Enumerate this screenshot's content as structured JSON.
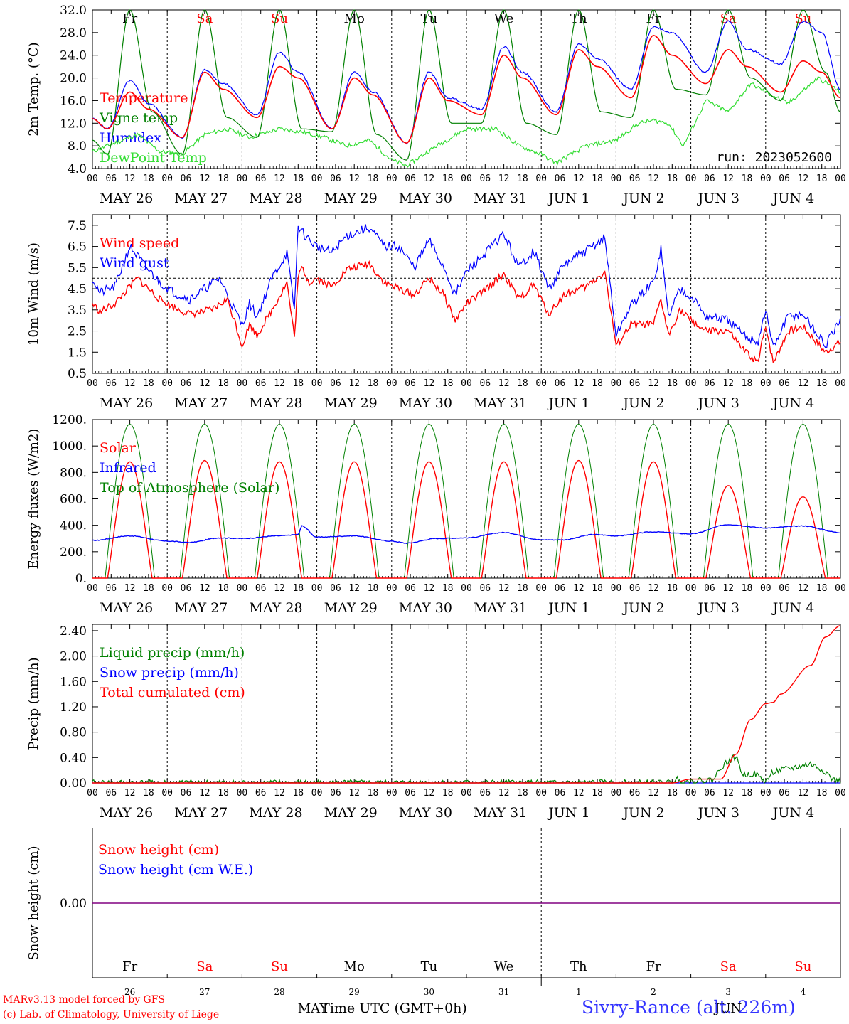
{
  "x_axis": {
    "hour_labels": [
      "00",
      "06",
      "12",
      "18"
    ],
    "date_labels": [
      "MAY 26",
      "MAY 27",
      "MAY 28",
      "MAY 29",
      "MAY 30",
      "MAY 31",
      "JUN  1",
      "JUN  2",
      "JUN  3",
      "JUN  4"
    ],
    "weekdays": [
      "Fr",
      "Sa",
      "Su",
      "Mo",
      "Tu",
      "We",
      "Th",
      "Fr",
      "Sa",
      "Su"
    ],
    "weekend_flags": [
      false,
      true,
      true,
      false,
      false,
      false,
      false,
      false,
      true,
      true
    ],
    "day_numbers": [
      "26",
      "27",
      "28",
      "29",
      "30",
      "31",
      "1",
      "2",
      "3",
      "4"
    ],
    "month_labels": [
      "MAY",
      "JUN"
    ],
    "title": "Time UTC (GMT+0h)"
  },
  "footer": {
    "model_line": "MARv3.13 model forced by GFS",
    "lab_line": "(c) Lab. of Climatology, University of Liege",
    "station": "Sivry-Rance (alt. 226m)"
  },
  "colors": {
    "red": "#ff0000",
    "dark_green": "#008000",
    "blue": "#0000ff",
    "light_green": "#33dd33",
    "purple": "#800080",
    "weekend": "#ff0000"
  },
  "chart_data": [
    {
      "type": "line",
      "ylabel": "2m Temp. (°C)",
      "ylim": [
        4,
        32
      ],
      "y_ticks": [
        "4.0",
        "8.0",
        "12.0",
        "16.0",
        "20.0",
        "24.0",
        "28.0",
        "32.0"
      ],
      "annotation": "run: 2023052600",
      "grid": "vertical dotted lines at midnight",
      "x_unit": "days since 2023-05-26 00 UTC",
      "series": [
        {
          "name": "Temperature",
          "color": "#ff0000",
          "style": "smooth",
          "x": [
            0,
            0.2,
            0.5,
            0.75,
            1.2,
            1.5,
            1.75,
            2.2,
            2.5,
            2.75,
            3.2,
            3.5,
            3.75,
            4.2,
            4.5,
            4.75,
            5.2,
            5.5,
            5.75,
            6.2,
            6.5,
            6.75,
            7.2,
            7.5,
            7.75,
            8.2,
            8.5,
            8.75,
            9.2,
            9.5,
            9.75,
            10
          ],
          "values": [
            12.8,
            11,
            17.5,
            14.5,
            9.5,
            21,
            18,
            13,
            22,
            20,
            11,
            20,
            17,
            8.5,
            20,
            16,
            13.5,
            24,
            20,
            13.5,
            25,
            22,
            16.5,
            27.5,
            24,
            19,
            25,
            22,
            17.5,
            23,
            21,
            16.5
          ]
        },
        {
          "name": "Vigne temp",
          "color": "#008000",
          "style": "sharp",
          "x": [
            0,
            0.2,
            0.5,
            0.8,
            1.2,
            1.5,
            1.8,
            2.2,
            2.5,
            2.8,
            3.2,
            3.5,
            3.8,
            4.2,
            4.5,
            4.8,
            5.2,
            5.5,
            5.8,
            6.2,
            6.5,
            6.8,
            7.2,
            7.5,
            7.8,
            8.2,
            8.5,
            8.8,
            9.2,
            9.5,
            9.8,
            10
          ],
          "values": [
            9,
            6.5,
            32,
            14,
            6.5,
            32,
            13,
            9.5,
            32,
            11,
            10.5,
            32,
            10,
            5.5,
            32,
            12,
            12,
            32,
            12,
            10,
            32,
            14,
            13,
            32,
            18,
            17,
            32,
            20,
            16,
            32,
            21,
            14
          ]
        },
        {
          "name": "Humidex",
          "color": "#0000ff",
          "style": "noisy",
          "x": [
            0,
            0.2,
            0.5,
            0.75,
            1.2,
            1.5,
            1.75,
            2.2,
            2.5,
            2.75,
            3.2,
            3.5,
            3.75,
            4.2,
            4.5,
            4.75,
            5.2,
            5.5,
            5.75,
            6.2,
            6.5,
            6.75,
            7.2,
            7.5,
            7.75,
            8.2,
            8.5,
            8.75,
            9.2,
            9.5,
            9.75,
            10
          ],
          "values": [
            12.8,
            11,
            19.5,
            15.5,
            9.5,
            21.5,
            19,
            13.5,
            24.5,
            21,
            11,
            21,
            17.5,
            8.5,
            21,
            16.5,
            14.5,
            25.5,
            21,
            14,
            26,
            23.5,
            18,
            29,
            28,
            21,
            30,
            25,
            22.5,
            30,
            28,
            18
          ]
        },
        {
          "name": "DewPoint Temp",
          "color": "#33dd33",
          "style": "noisy",
          "x": [
            0,
            0.3,
            0.6,
            0.9,
            1.2,
            1.5,
            1.8,
            2.1,
            2.5,
            2.8,
            3.1,
            3.4,
            3.7,
            4.0,
            4.2,
            4.6,
            5.0,
            5.4,
            5.7,
            6.0,
            6.2,
            6.6,
            7.0,
            7.3,
            7.5,
            7.7,
            7.9,
            8.2,
            8.5,
            8.8,
            9.0,
            9.3,
            9.7,
            10
          ],
          "values": [
            7,
            8.5,
            10,
            7,
            6.5,
            10,
            11,
            9.5,
            11,
            10.5,
            9.5,
            8,
            9,
            5.5,
            4.5,
            8,
            11,
            11,
            8,
            6.5,
            5,
            8,
            9,
            12,
            12.5,
            12,
            8,
            16,
            14,
            19,
            17.5,
            15.5,
            20,
            17.5
          ]
        }
      ]
    },
    {
      "type": "line",
      "ylabel": "10m Wind (m/s)",
      "ylim": [
        0.5,
        8
      ],
      "y_ticks": [
        "0.5",
        "1.5",
        "2.5",
        "3.5",
        "4.5",
        "5.5",
        "6.5",
        "7.5"
      ],
      "reference_line": 5,
      "grid": "vertical dotted lines at midnight",
      "x_unit": "days since 2023-05-26 00 UTC",
      "series": [
        {
          "name": "Wind speed",
          "color": "#ff0000",
          "style": "noisy",
          "x": [
            0,
            0.1,
            0.3,
            0.6,
            0.9,
            1.1,
            1.3,
            1.6,
            1.8,
            1.9,
            2.0,
            2.1,
            2.2,
            2.4,
            2.6,
            2.7,
            2.75,
            2.8,
            2.9,
            3.0,
            3.2,
            3.4,
            3.7,
            3.9,
            4.1,
            4.3,
            4.5,
            4.7,
            4.85,
            5.0,
            5.2,
            5.5,
            5.7,
            5.9,
            6.1,
            6.3,
            6.6,
            6.85,
            7.0,
            7.2,
            7.5,
            7.6,
            7.7,
            7.85,
            8.0,
            8.2,
            8.5,
            8.7,
            8.9,
            9.0,
            9.1,
            9.3,
            9.5,
            9.8,
            10
          ],
          "values": [
            3.8,
            3.4,
            3.8,
            5,
            4,
            3.6,
            3.3,
            3.5,
            4,
            3,
            1.8,
            2.8,
            2.3,
            3.5,
            4.8,
            2.2,
            5,
            5.5,
            4.8,
            5,
            4.6,
            5.4,
            5.7,
            4.8,
            4.5,
            4.2,
            5,
            4.2,
            3,
            3.8,
            4.3,
            5.2,
            4,
            4.7,
            3.3,
            4.2,
            4.6,
            5.3,
            1.8,
            2.8,
            2.8,
            4,
            2.3,
            3.5,
            3,
            2.5,
            2.5,
            1.6,
            1.0,
            2.8,
            1.0,
            2.5,
            2.7,
            1.5,
            2.0
          ]
        },
        {
          "name": "Wind gust",
          "color": "#0000ff",
          "style": "noisy",
          "x": [
            0,
            0.1,
            0.3,
            0.5,
            0.7,
            0.9,
            1.1,
            1.3,
            1.5,
            1.7,
            1.9,
            2.0,
            2.1,
            2.2,
            2.4,
            2.6,
            2.7,
            2.75,
            2.8,
            2.9,
            3.0,
            3.2,
            3.4,
            3.7,
            3.9,
            4.1,
            4.3,
            4.5,
            4.7,
            4.85,
            5.0,
            5.2,
            5.5,
            5.7,
            5.9,
            6.1,
            6.3,
            6.6,
            6.85,
            7.0,
            7.2,
            7.5,
            7.6,
            7.7,
            7.85,
            8.0,
            8.2,
            8.5,
            8.7,
            8.9,
            9.0,
            9.1,
            9.3,
            9.5,
            9.8,
            10
          ],
          "values": [
            5,
            4.3,
            4.6,
            6.5,
            5.6,
            4.8,
            4.3,
            4,
            4.5,
            5,
            3.5,
            2.8,
            3.8,
            3.2,
            5,
            6.2,
            3.5,
            7.5,
            7.2,
            6.8,
            6.5,
            6.2,
            7,
            7.4,
            6.5,
            6.5,
            5.5,
            6.8,
            5.5,
            4.2,
            5.3,
            6,
            7.1,
            5.5,
            6.3,
            4.5,
            5.6,
            6.3,
            6.9,
            2.3,
            3.7,
            4.8,
            6.4,
            3.2,
            4.5,
            4.2,
            3.2,
            3.0,
            2.3,
            2.0,
            3.5,
            1.7,
            3.2,
            3.3,
            1.8,
            3.0
          ]
        }
      ]
    },
    {
      "type": "line",
      "ylabel": "Energy fluxes (W/m2)",
      "ylim": [
        0,
        1200
      ],
      "y_ticks": [
        "0.",
        "200.",
        "400.",
        "600.",
        "800.",
        "1000.",
        "1200."
      ],
      "grid": "vertical dotted lines at midnight",
      "x_unit": "days since 2023-05-26 00 UTC",
      "series": [
        {
          "name": "Solar",
          "color": "#ff0000",
          "daily_peak": [
            880,
            890,
            880,
            880,
            880,
            880,
            890,
            880,
            700,
            615
          ]
        },
        {
          "name": "Infrared",
          "color": "#0000ff",
          "x": [
            0,
            0.5,
            1.0,
            1.3,
            1.7,
            2.0,
            2.5,
            2.75,
            2.8,
            3.0,
            3.5,
            4.0,
            4.2,
            4.6,
            5.0,
            5.5,
            6.0,
            6.3,
            6.7,
            7.0,
            7.5,
            8.0,
            8.5,
            9.0,
            9.5,
            10
          ],
          "values": [
            285,
            320,
            280,
            270,
            305,
            300,
            320,
            330,
            395,
            310,
            320,
            280,
            265,
            300,
            305,
            345,
            290,
            290,
            330,
            320,
            350,
            335,
            405,
            380,
            395,
            345
          ]
        },
        {
          "name": "Top of Atmosphere (Solar)",
          "color": "#008000",
          "daily_peak": [
            1165,
            1165,
            1165,
            1165,
            1165,
            1165,
            1165,
            1165,
            1165,
            1165
          ]
        }
      ]
    },
    {
      "type": "line",
      "ylabel": "Precip (mm/h)",
      "ylim": [
        0,
        2.5
      ],
      "y_ticks": [
        "0.00",
        "0.40",
        "0.80",
        "1.20",
        "1.60",
        "2.00",
        "2.40"
      ],
      "grid": "vertical dotted lines at midnight",
      "x_unit": "days since 2023-05-26 00 UTC",
      "series": [
        {
          "name": "Liquid precip (mm/h)",
          "color": "#008000",
          "x": [
            0,
            7.75,
            7.8,
            7.85,
            8.3,
            8.4,
            8.6,
            8.7,
            8.85,
            9.0,
            9.1,
            9.3,
            9.6,
            9.8,
            9.9,
            10
          ],
          "values": [
            0,
            0,
            0.08,
            0.02,
            0.05,
            0.25,
            0.42,
            0.12,
            0.15,
            0.02,
            0.18,
            0.22,
            0.3,
            0.18,
            0.05,
            0.02
          ]
        },
        {
          "name": "Snow precip (mm/h)",
          "color": "#0000ff",
          "x": [
            0,
            10
          ],
          "values": [
            0,
            0
          ]
        },
        {
          "name": "Total cumulated (cm)",
          "color": "#ff0000",
          "x": [
            0,
            7.75,
            8.0,
            8.4,
            8.6,
            8.8,
            9.0,
            9.1,
            9.2,
            9.6,
            9.8,
            10
          ],
          "values": [
            0,
            0,
            0.06,
            0.06,
            0.45,
            1.0,
            1.25,
            1.27,
            1.4,
            1.85,
            2.3,
            2.48
          ]
        }
      ]
    },
    {
      "type": "line",
      "ylabel": "Snow height (cm)",
      "ylim": [
        -1,
        1
      ],
      "y_ticks": [
        "0.00"
      ],
      "grid": "single vertical dotted line at JUN 1",
      "x_unit": "days since 2023-05-26 00 UTC",
      "series": [
        {
          "name": "Snow height (cm)",
          "color": "#ff0000",
          "x": [
            0,
            10
          ],
          "values": [
            0,
            0
          ]
        },
        {
          "name": "Snow height (cm W.E.)",
          "color": "#0000ff",
          "x": [
            0,
            10
          ],
          "values": [
            0,
            0
          ]
        }
      ]
    }
  ]
}
